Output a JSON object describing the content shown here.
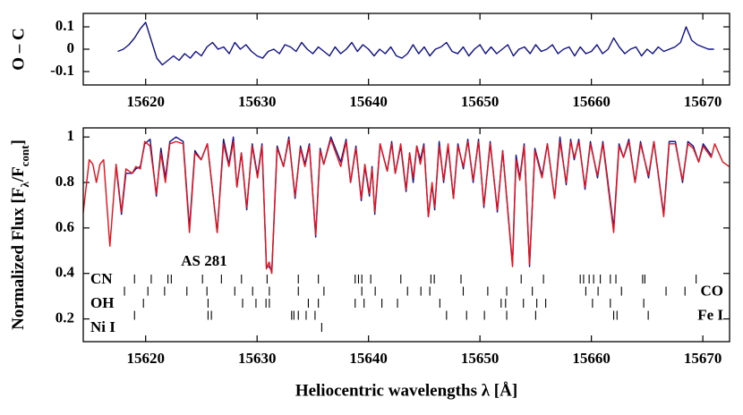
{
  "chart_data": [
    {
      "type": "line",
      "ylabel": "O – C",
      "xlim": [
        15614.4,
        15672.4
      ],
      "xticks": [
        15620,
        15630,
        15640,
        15650,
        15660,
        15670
      ],
      "ylim": [
        -0.16,
        0.16
      ],
      "yticks": [
        -0.1,
        0,
        0.1
      ],
      "color": "#10108a",
      "x": [
        15617.5,
        15618,
        15618.5,
        15619,
        15619.5,
        15620,
        15620.5,
        15621,
        15621.5,
        15622,
        15622.5,
        15623,
        15623.5,
        15624,
        15624.5,
        15625,
        15625.5,
        15626,
        15626.5,
        15627,
        15627.5,
        15628,
        15628.5,
        15629,
        15629.5,
        15630,
        15630.5,
        15631,
        15631.5,
        15632,
        15632.5,
        15633,
        15633.5,
        15634,
        15634.5,
        15635,
        15635.5,
        15636,
        15636.5,
        15637,
        15637.5,
        15638,
        15638.5,
        15639,
        15639.5,
        15640,
        15640.5,
        15641,
        15641.5,
        15642,
        15642.5,
        15643,
        15643.5,
        15644,
        15644.5,
        15645,
        15645.5,
        15646,
        15646.5,
        15647,
        15647.5,
        15648,
        15648.5,
        15649,
        15649.5,
        15650,
        15650.5,
        15651,
        15651.5,
        15652,
        15652.5,
        15653,
        15653.5,
        15654,
        15654.5,
        15655,
        15655.5,
        15656,
        15656.5,
        15657,
        15657.5,
        15658,
        15658.5,
        15659,
        15659.5,
        15660,
        15660.5,
        15661,
        15661.5,
        15662,
        15662.5,
        15663,
        15663.5,
        15664,
        15664.5,
        15665,
        15665.5,
        15666,
        15666.5,
        15667,
        15667.5,
        15668,
        15668.5,
        15669,
        15669.5,
        15670,
        15670.5,
        15671
      ],
      "values": [
        -0.01,
        0,
        0.02,
        0.05,
        0.09,
        0.12,
        0.04,
        -0.04,
        -0.07,
        -0.05,
        -0.03,
        -0.05,
        -0.02,
        -0.04,
        -0.01,
        -0.03,
        0.01,
        0.03,
        0,
        0.01,
        -0.02,
        0.03,
        0,
        0.02,
        -0.01,
        -0.03,
        -0.04,
        -0.01,
        0,
        -0.02,
        0.02,
        0.01,
        -0.01,
        0.03,
        0,
        -0.02,
        0.01,
        -0.01,
        -0.03,
        0.01,
        -0.02,
        0,
        0.03,
        -0.01,
        0.02,
        0,
        -0.03,
        0,
        -0.02,
        0.01,
        -0.03,
        -0.04,
        -0.02,
        0.02,
        -0.02,
        0.01,
        -0.03,
        0,
        0.01,
        0.03,
        -0.01,
        -0.02,
        0.01,
        -0.03,
        0,
        0.02,
        -0.02,
        0.01,
        -0.02,
        0,
        0.02,
        -0.03,
        0,
        0.01,
        -0.02,
        0.02,
        -0.01,
        0,
        0.02,
        -0.02,
        0,
        0.01,
        -0.03,
        0.01,
        -0.02,
        -0.01,
        0.02,
        -0.02,
        0,
        0.05,
        0.01,
        -0.02,
        0,
        0.01,
        -0.03,
        0,
        -0.02,
        0.01,
        -0.01,
        0,
        0.01,
        0.03,
        0.1,
        0.04,
        0.02,
        0.01,
        0,
        0
      ]
    },
    {
      "type": "line",
      "xlabel": "Heliocentric wavelengths λ [Å]",
      "ylabel": [
        "Normalized Flux [F",
        "λ",
        "/F",
        "cont",
        "]"
      ],
      "annotation": "AS 281",
      "xlim": [
        15614.4,
        15672.4
      ],
      "xticks": [
        15620,
        15630,
        15640,
        15650,
        15660,
        15670
      ],
      "ylim": [
        0.1,
        1.04
      ],
      "yticks": [
        0.2,
        0.4,
        0.6,
        0.8,
        1
      ],
      "x": [
        15614.38,
        15614.94,
        15615.26,
        15615.58,
        15615.9,
        15616.23,
        15616.79,
        15617.35,
        15617.83,
        15618.23,
        15618.8,
        15619.12,
        15619.52,
        15619.92,
        15620.4,
        15620.96,
        15621.37,
        15621.77,
        15622.17,
        15622.73,
        15623.37,
        15623.93,
        15624.42,
        15624.98,
        15625.54,
        15626.42,
        15626.99,
        15627.47,
        15627.87,
        15628.19,
        15628.59,
        15629.07,
        15629.56,
        15630.04,
        15630.44,
        15630.84,
        15631.08,
        15631.32,
        15631.8,
        15632.37,
        15632.85,
        15633.41,
        15633.89,
        15634.29,
        15634.69,
        15635.26,
        15635.66,
        15635.98,
        15636.62,
        15637.51,
        15637.99,
        15638.39,
        15638.87,
        15639.35,
        15639.67,
        15640.08,
        15640.32,
        15640.56,
        15641.04,
        15641.68,
        15642.08,
        15642.4,
        15642.89,
        15643.37,
        15643.69,
        15644.01,
        15644.33,
        15644.65,
        15644.97,
        15645.37,
        15645.7,
        15645.94,
        15646.34,
        15646.74,
        15647.14,
        15647.62,
        15648.02,
        15648.51,
        15648.91,
        15649.39,
        15649.87,
        15650.35,
        15650.92,
        15651.56,
        15652.04,
        15652.92,
        15653.24,
        15653.57,
        15653.97,
        15654.45,
        15654.93,
        15655.57,
        15656.05,
        15656.7,
        15657.18,
        15657.74,
        15658.14,
        15658.46,
        15658.87,
        15659.43,
        15659.91,
        15660.55,
        15661.03,
        15662.0,
        15662.48,
        15662.88,
        15663.36,
        15663.92,
        15664.41,
        15665.13,
        15665.61,
        15666.49,
        15666.98,
        15667.54,
        15668.18,
        15668.66,
        15669.14,
        15669.63,
        15670.03,
        15670.75,
        15671.07,
        15671.79,
        15672.36
      ],
      "series": [
        {
          "color": "#10108a",
          "values": [
            null,
            null,
            null,
            null,
            null,
            null,
            null,
            0.87,
            0.66,
            0.84,
            0.84,
            0.86,
            0.87,
            0.97,
            0.99,
            0.74,
            0.95,
            0.82,
            0.98,
            1.0,
            0.98,
            0.6,
            0.94,
            0.9,
            0.97,
            0.58,
            0.99,
            0.88,
            1.0,
            0.78,
            0.93,
            0.68,
            0.97,
            0.83,
            0.97,
            0.43,
            0.43,
            0.41,
            0.96,
            0.87,
            1.0,
            0.73,
            0.96,
            0.88,
            0.97,
            0.56,
            0.95,
            0.88,
            1.0,
            0.89,
            0.99,
            0.8,
            0.96,
            0.72,
            0.87,
            0.74,
            0.87,
            0.66,
            0.97,
            0.85,
            0.98,
            0.84,
            0.96,
            0.76,
            0.93,
            0.8,
            0.96,
            0.9,
            0.97,
            0.65,
            0.79,
            0.68,
            0.98,
            0.8,
            0.96,
            0.73,
            0.97,
            0.86,
            0.99,
            0.8,
            0.99,
            0.69,
            0.98,
            0.67,
            0.94,
            0.44,
            0.92,
            0.82,
            0.97,
            0.43,
            0.95,
            0.83,
            0.97,
            0.73,
            1.0,
            0.79,
            0.99,
            0.9,
            0.99,
            0.77,
            0.98,
            0.82,
            0.98,
            0.6,
            0.97,
            0.91,
            0.99,
            0.8,
            0.98,
            0.82,
            0.98,
            0.66,
            0.98,
            0.98,
            0.8,
            0.98,
            0.96,
            0.89,
            0.97,
            0.92,
            null,
            null,
            null
          ]
        },
        {
          "color": "#e8101a",
          "values": [
            0.66,
            0.9,
            0.88,
            0.8,
            0.88,
            0.9,
            0.52,
            0.88,
            0.67,
            0.86,
            0.84,
            0.87,
            0.86,
            0.98,
            0.96,
            0.75,
            0.93,
            0.8,
            0.97,
            0.98,
            0.97,
            0.58,
            0.93,
            0.9,
            0.97,
            0.58,
            0.97,
            0.87,
            0.98,
            0.78,
            0.93,
            0.69,
            0.96,
            0.82,
            0.96,
            0.42,
            0.45,
            0.4,
            0.95,
            0.87,
            0.99,
            0.74,
            0.95,
            0.87,
            0.96,
            0.57,
            0.94,
            0.88,
            0.99,
            0.87,
            0.98,
            0.8,
            0.95,
            0.73,
            0.88,
            0.75,
            0.86,
            0.67,
            0.97,
            0.85,
            0.97,
            0.84,
            0.97,
            0.77,
            0.93,
            0.82,
            0.96,
            0.88,
            0.96,
            0.65,
            0.8,
            0.69,
            0.96,
            0.81,
            0.97,
            0.73,
            0.96,
            0.87,
            0.98,
            0.81,
            0.98,
            0.7,
            0.97,
            0.68,
            0.94,
            0.43,
            0.9,
            0.81,
            0.96,
            0.44,
            0.94,
            0.82,
            0.97,
            0.73,
            0.98,
            0.8,
            0.98,
            0.91,
            0.98,
            0.78,
            0.97,
            0.83,
            0.97,
            0.58,
            0.96,
            0.91,
            0.98,
            0.8,
            0.97,
            0.83,
            0.98,
            0.65,
            0.97,
            0.97,
            0.81,
            0.97,
            0.95,
            0.89,
            0.96,
            0.91,
            0.97,
            0.89,
            0.87
          ]
        }
      ],
      "line_lists": [
        {
          "label": "CN",
          "x": [
            15619.0,
            15620.5,
            15622.0,
            15622.3,
            15625.1,
            15626.8,
            15628.6,
            15630.9,
            15633.7,
            15635.5,
            15638.8,
            15639.1,
            15639.4,
            15640.2,
            15642.9,
            15645.6,
            15645.9,
            15648.3,
            15653.7,
            15655.7,
            15659.0,
            15659.3,
            15659.8,
            15660.2,
            15660.8,
            15661.7,
            15662.2,
            15664.6,
            15664.8,
            15669.4
          ]
        },
        {
          "label": "CO",
          "x": [
            15618.1,
            15620.2,
            15621.7,
            15623.7,
            15625.5,
            15628.0,
            15629.6,
            15631.1,
            15633.7,
            15636.0,
            15639.4,
            15640.6,
            15643.5,
            15644.7,
            15645.5,
            15648.5,
            15650.7,
            15652.4,
            15654.7,
            15659.5,
            15660.6,
            15662.7,
            15666.7,
            15668.4
          ]
        },
        {
          "label": "OH",
          "x": [
            15619.8,
            15625.6,
            15628.7,
            15629.9,
            15630.8,
            15631.1,
            15634.6,
            15635.5,
            15638.8,
            15639.6,
            15641.2,
            15642.6,
            15646.4,
            15651.9,
            15652.3,
            15653.9,
            15655.1,
            15655.9,
            15660.1,
            15661.7,
            15664.7
          ]
        },
        {
          "label": "Fe I",
          "x": [
            15619.0,
            15625.6,
            15625.9,
            15633.1,
            15633.3,
            15633.7,
            15634.4,
            15635.2,
            15647.0,
            15648.8,
            15650.4,
            15652.4,
            15655.0,
            15662.0,
            15662.3,
            15665.1
          ]
        },
        {
          "label": "Ni I",
          "x": [
            15635.8
          ]
        }
      ]
    }
  ]
}
